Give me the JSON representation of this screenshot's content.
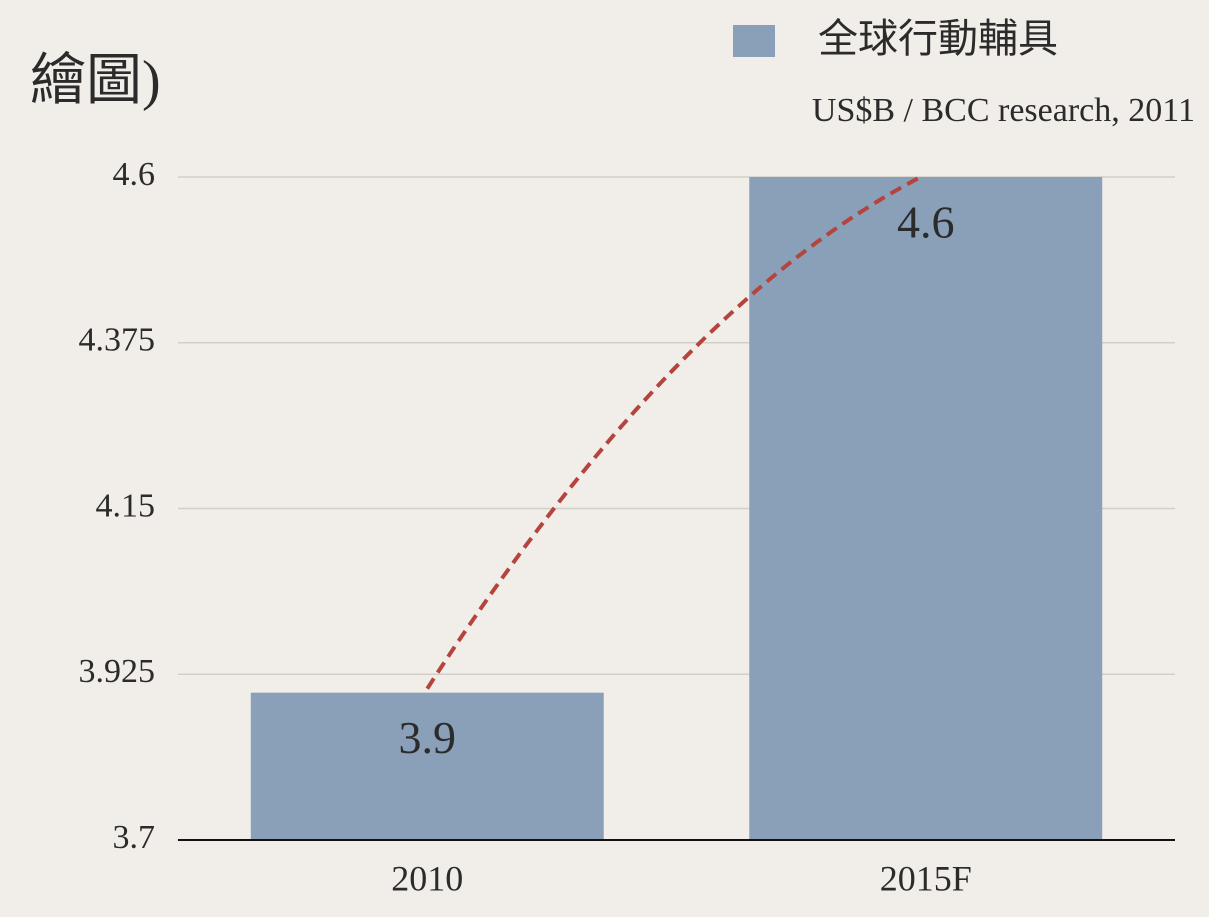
{
  "chart_data": {
    "type": "bar",
    "title": "繪圖)",
    "legend_title": "全球行動輔具",
    "subtitle": "US$B / BCC research, 2011",
    "categories": [
      "2010",
      "2015F"
    ],
    "values": [
      3.9,
      4.6
    ],
    "color": "#8a9fb8",
    "ylim": [
      3.7,
      4.6
    ],
    "yticks": [
      3.7,
      3.925,
      4.15,
      4.375,
      4.6
    ],
    "grid": true,
    "trend_color": "#b5443e"
  }
}
